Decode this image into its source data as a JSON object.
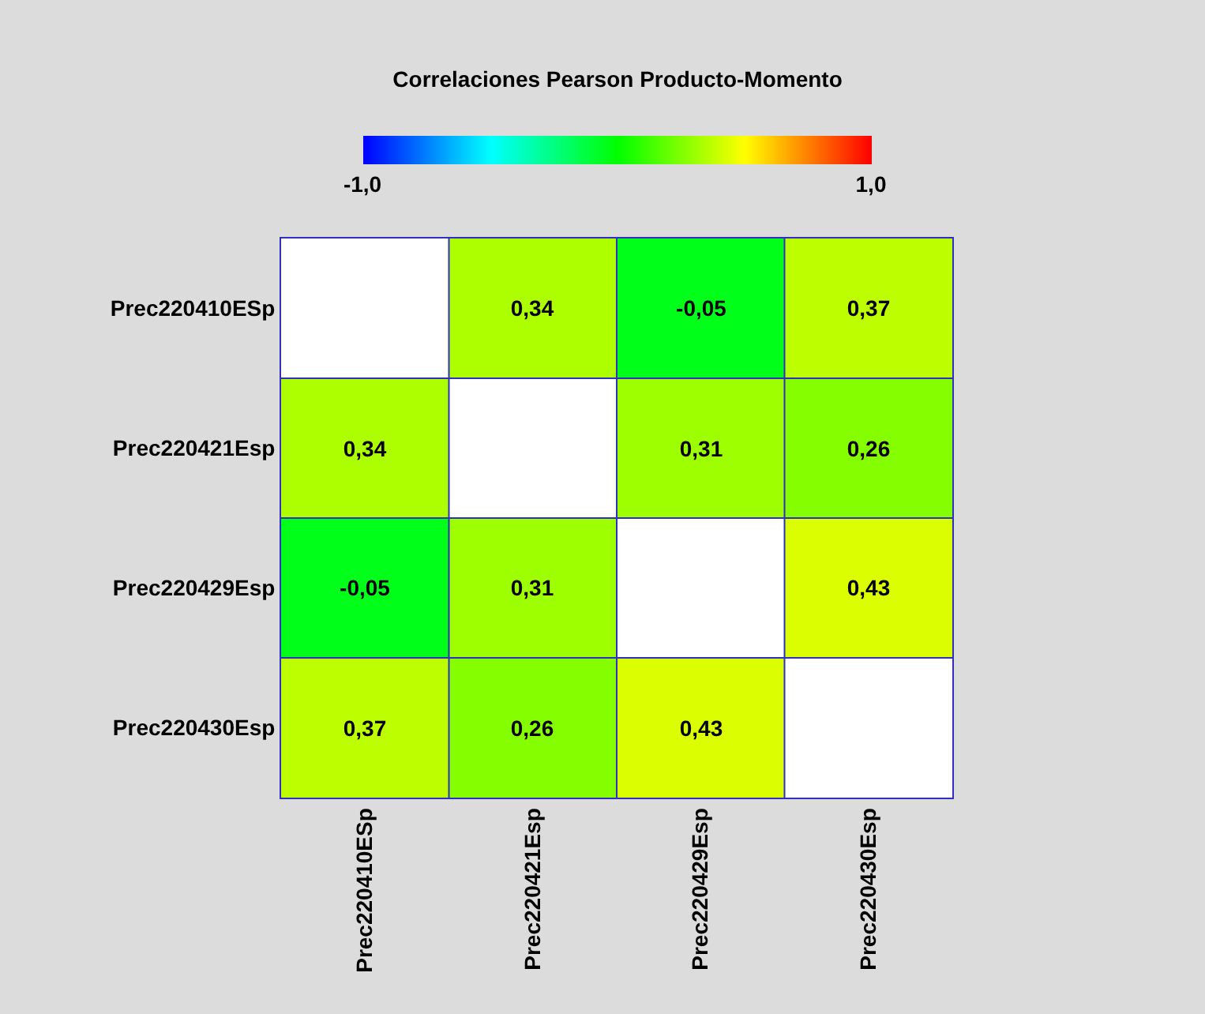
{
  "chart_data": {
    "type": "heatmap",
    "title": "Correlaciones Pearson Producto-Momento",
    "categories": [
      "Prec220410ESp",
      "Prec220421Esp",
      "Prec220429Esp",
      "Prec220430Esp"
    ],
    "y_categories": [
      "Prec220410ESp",
      "Prec220421Esp",
      "Prec220429Esp",
      "Prec220430Esp"
    ],
    "cells": [
      [
        null,
        0.34,
        -0.05,
        0.37
      ],
      [
        0.34,
        null,
        0.31,
        0.26
      ],
      [
        -0.05,
        0.31,
        null,
        0.43
      ],
      [
        0.37,
        0.26,
        0.43,
        null
      ]
    ],
    "cell_labels": [
      [
        null,
        "0,34",
        "-0,05",
        "0,37"
      ],
      [
        "0,34",
        null,
        "0,31",
        "0,26"
      ],
      [
        "-0,05",
        "0,31",
        null,
        "0,43"
      ],
      [
        "0,37",
        "0,26",
        "0,43",
        null
      ]
    ],
    "clim": [
      -1,
      1
    ],
    "cticks": [
      {
        "value": -1,
        "label": "-1,0"
      },
      {
        "value": 1,
        "label": "1,0"
      }
    ],
    "grid": true
  }
}
